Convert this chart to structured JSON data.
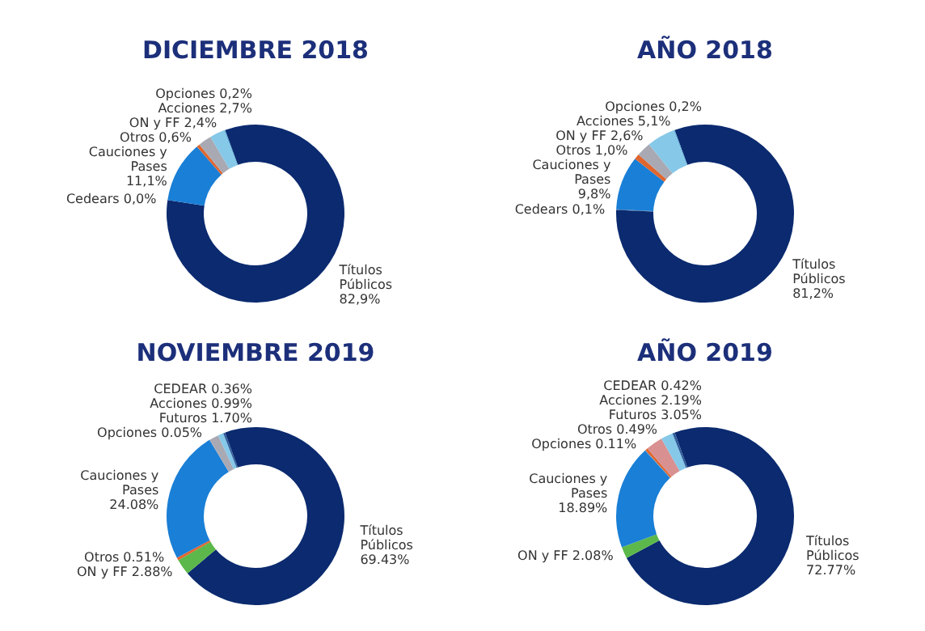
{
  "chart_data": [
    {
      "type": "donut",
      "title": "DICIEMBRE 2018",
      "categories": [
        "Títulos Públicos",
        "Cedears",
        "Cauciones y Pases",
        "Otros",
        "ON y FF",
        "Acciones",
        "Opciones"
      ],
      "values": [
        82.9,
        0.0,
        11.1,
        0.6,
        2.4,
        2.7,
        0.2
      ],
      "colors": [
        "#0b2a6f",
        "#2e5b9a",
        "#1a7fd6",
        "#e0662f",
        "#a9a9b3",
        "#86c8e8",
        "#5aa9d6"
      ],
      "value_labels": [
        "82,9%",
        "0,0%",
        "11,1%",
        "0,6%",
        "2,4%",
        "2,7%",
        "0,2%"
      ]
    },
    {
      "type": "donut",
      "title": "AÑO 2018",
      "categories": [
        "Títulos Públicos",
        "Cedears",
        "Cauciones y Pases",
        "Otros",
        "ON y FF",
        "Acciones",
        "Opciones"
      ],
      "values": [
        81.2,
        0.1,
        9.8,
        1.0,
        2.6,
        5.1,
        0.2
      ],
      "colors": [
        "#0b2a6f",
        "#2e5b9a",
        "#1a7fd6",
        "#e0662f",
        "#a9a9b3",
        "#86c8e8",
        "#5aa9d6"
      ],
      "value_labels": [
        "81,2%",
        "0,1%",
        "9,8%",
        "1,0%",
        "2,6%",
        "5,1%",
        "0,2%"
      ]
    },
    {
      "type": "donut",
      "title": "NOVIEMBRE 2019",
      "categories": [
        "Títulos Públicos",
        "ON y FF",
        "Otros",
        "Cauciones y Pases",
        "Opciones",
        "Futuros",
        "Acciones",
        "CEDEAR"
      ],
      "values": [
        69.43,
        2.88,
        0.51,
        24.08,
        0.05,
        1.7,
        0.99,
        0.36
      ],
      "colors": [
        "#0b2a6f",
        "#5cb84a",
        "#e0662f",
        "#1a7fd6",
        "#4a8fc8",
        "#a9a9b3",
        "#86c8e8",
        "#2e5b9a"
      ],
      "value_labels": [
        "69.43%",
        "2.88%",
        "0.51%",
        "24.08%",
        "0.05%",
        "1.70%",
        "0.99%",
        "0.36%"
      ]
    },
    {
      "type": "donut",
      "title": "AÑO 2019",
      "categories": [
        "Títulos Públicos",
        "ON y FF",
        "Cauciones y Pases",
        "Opciones",
        "Otros",
        "Futuros",
        "Acciones",
        "CEDEAR"
      ],
      "values": [
        72.77,
        2.08,
        18.89,
        0.11,
        0.49,
        3.05,
        2.19,
        0.42
      ],
      "colors": [
        "#0b2a6f",
        "#5cb84a",
        "#1a7fd6",
        "#4a8fc8",
        "#e0662f",
        "#d99090",
        "#86c8e8",
        "#2e5b9a"
      ],
      "value_labels": [
        "72.77%",
        "2.08%",
        "18.89%",
        "0.11%",
        "0.49%",
        "3.05%",
        "2.19%",
        "0.42%"
      ]
    }
  ]
}
